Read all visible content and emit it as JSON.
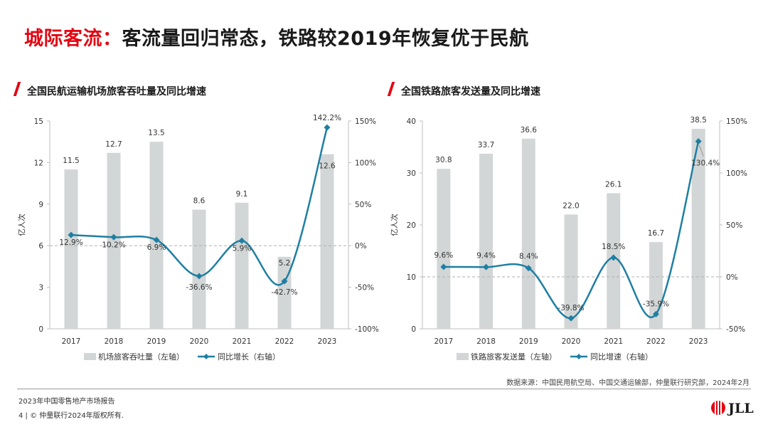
{
  "page": {
    "title_accent": "城际客流：",
    "title_rest": "客流量回归常态，铁路较2019年恢复优于民航",
    "source": "数据来源：中国民用航空局、中国交通运输部，仲量联行研究部，2024年2月",
    "report_name": "2023年中国零售地产市场报告",
    "footer": "4 | © 仲量联行2024年版权所有.",
    "logo_text": "JLL",
    "colors": {
      "accent": "#e30613",
      "bar": "#d3d6d6",
      "line": "#1f7fa3"
    }
  },
  "chart_data": [
    {
      "type": "bar",
      "title": "全国民航运输机场旅客吞吐量及同比增速",
      "categories": [
        "2017",
        "2018",
        "2019",
        "2020",
        "2021",
        "2022",
        "2023"
      ],
      "ylabel": "亿人次",
      "ylim": [
        0,
        15
      ],
      "yticks": [
        "0",
        "3",
        "6",
        "9",
        "12",
        "15"
      ],
      "y2lim": [
        -100,
        150
      ],
      "y2ticks": [
        "-100%",
        "-50%",
        "0%",
        "50%",
        "100%",
        "150%"
      ],
      "bar_series": {
        "name": "机场旅客吞吐量（左轴）",
        "values": [
          11.5,
          12.7,
          13.5,
          8.6,
          9.1,
          5.2,
          12.6
        ]
      },
      "bar_labels": [
        "11.5",
        "12.7",
        "13.5",
        "8.6",
        "9.1",
        "5.2",
        "12.6"
      ],
      "line_series": {
        "name": "同比增长（右轴）",
        "values": [
          12.9,
          10.2,
          6.9,
          -36.6,
          5.9,
          -42.7,
          142.2
        ]
      },
      "line_labels": [
        "12.9%",
        "10.2%",
        "6.9%",
        "-36.6%",
        "5.9%",
        "-42.7%",
        "142.2%"
      ],
      "grid": false,
      "legend": "bottom"
    },
    {
      "type": "bar",
      "title": "全国铁路旅客发送量及同比增速",
      "categories": [
        "2017",
        "2018",
        "2019",
        "2020",
        "2021",
        "2022",
        "2023"
      ],
      "ylabel": "亿人次",
      "ylim": [
        0,
        40
      ],
      "yticks": [
        "0",
        "10",
        "20",
        "30",
        "40"
      ],
      "y2lim": [
        -50,
        150
      ],
      "y2ticks": [
        "-50%",
        "0%",
        "50%",
        "100%",
        "150%"
      ],
      "bar_series": {
        "name": "铁路旅客发送量（左轴）",
        "values": [
          30.8,
          33.7,
          36.6,
          22.0,
          26.1,
          16.7,
          38.5
        ]
      },
      "bar_labels": [
        "30.8",
        "33.7",
        "36.6",
        "22.0",
        "26.1",
        "16.7",
        "38.5"
      ],
      "line_series": {
        "name": "同比增速（右轴）",
        "values": [
          9.6,
          9.4,
          8.4,
          -39.8,
          18.5,
          -35.9,
          130.4
        ]
      },
      "line_labels": [
        "9.6%",
        "9.4%",
        "8.4%",
        "-39.8%",
        "18.5%",
        "-35.9%",
        "130.4%"
      ],
      "grid": false,
      "legend": "bottom"
    }
  ]
}
